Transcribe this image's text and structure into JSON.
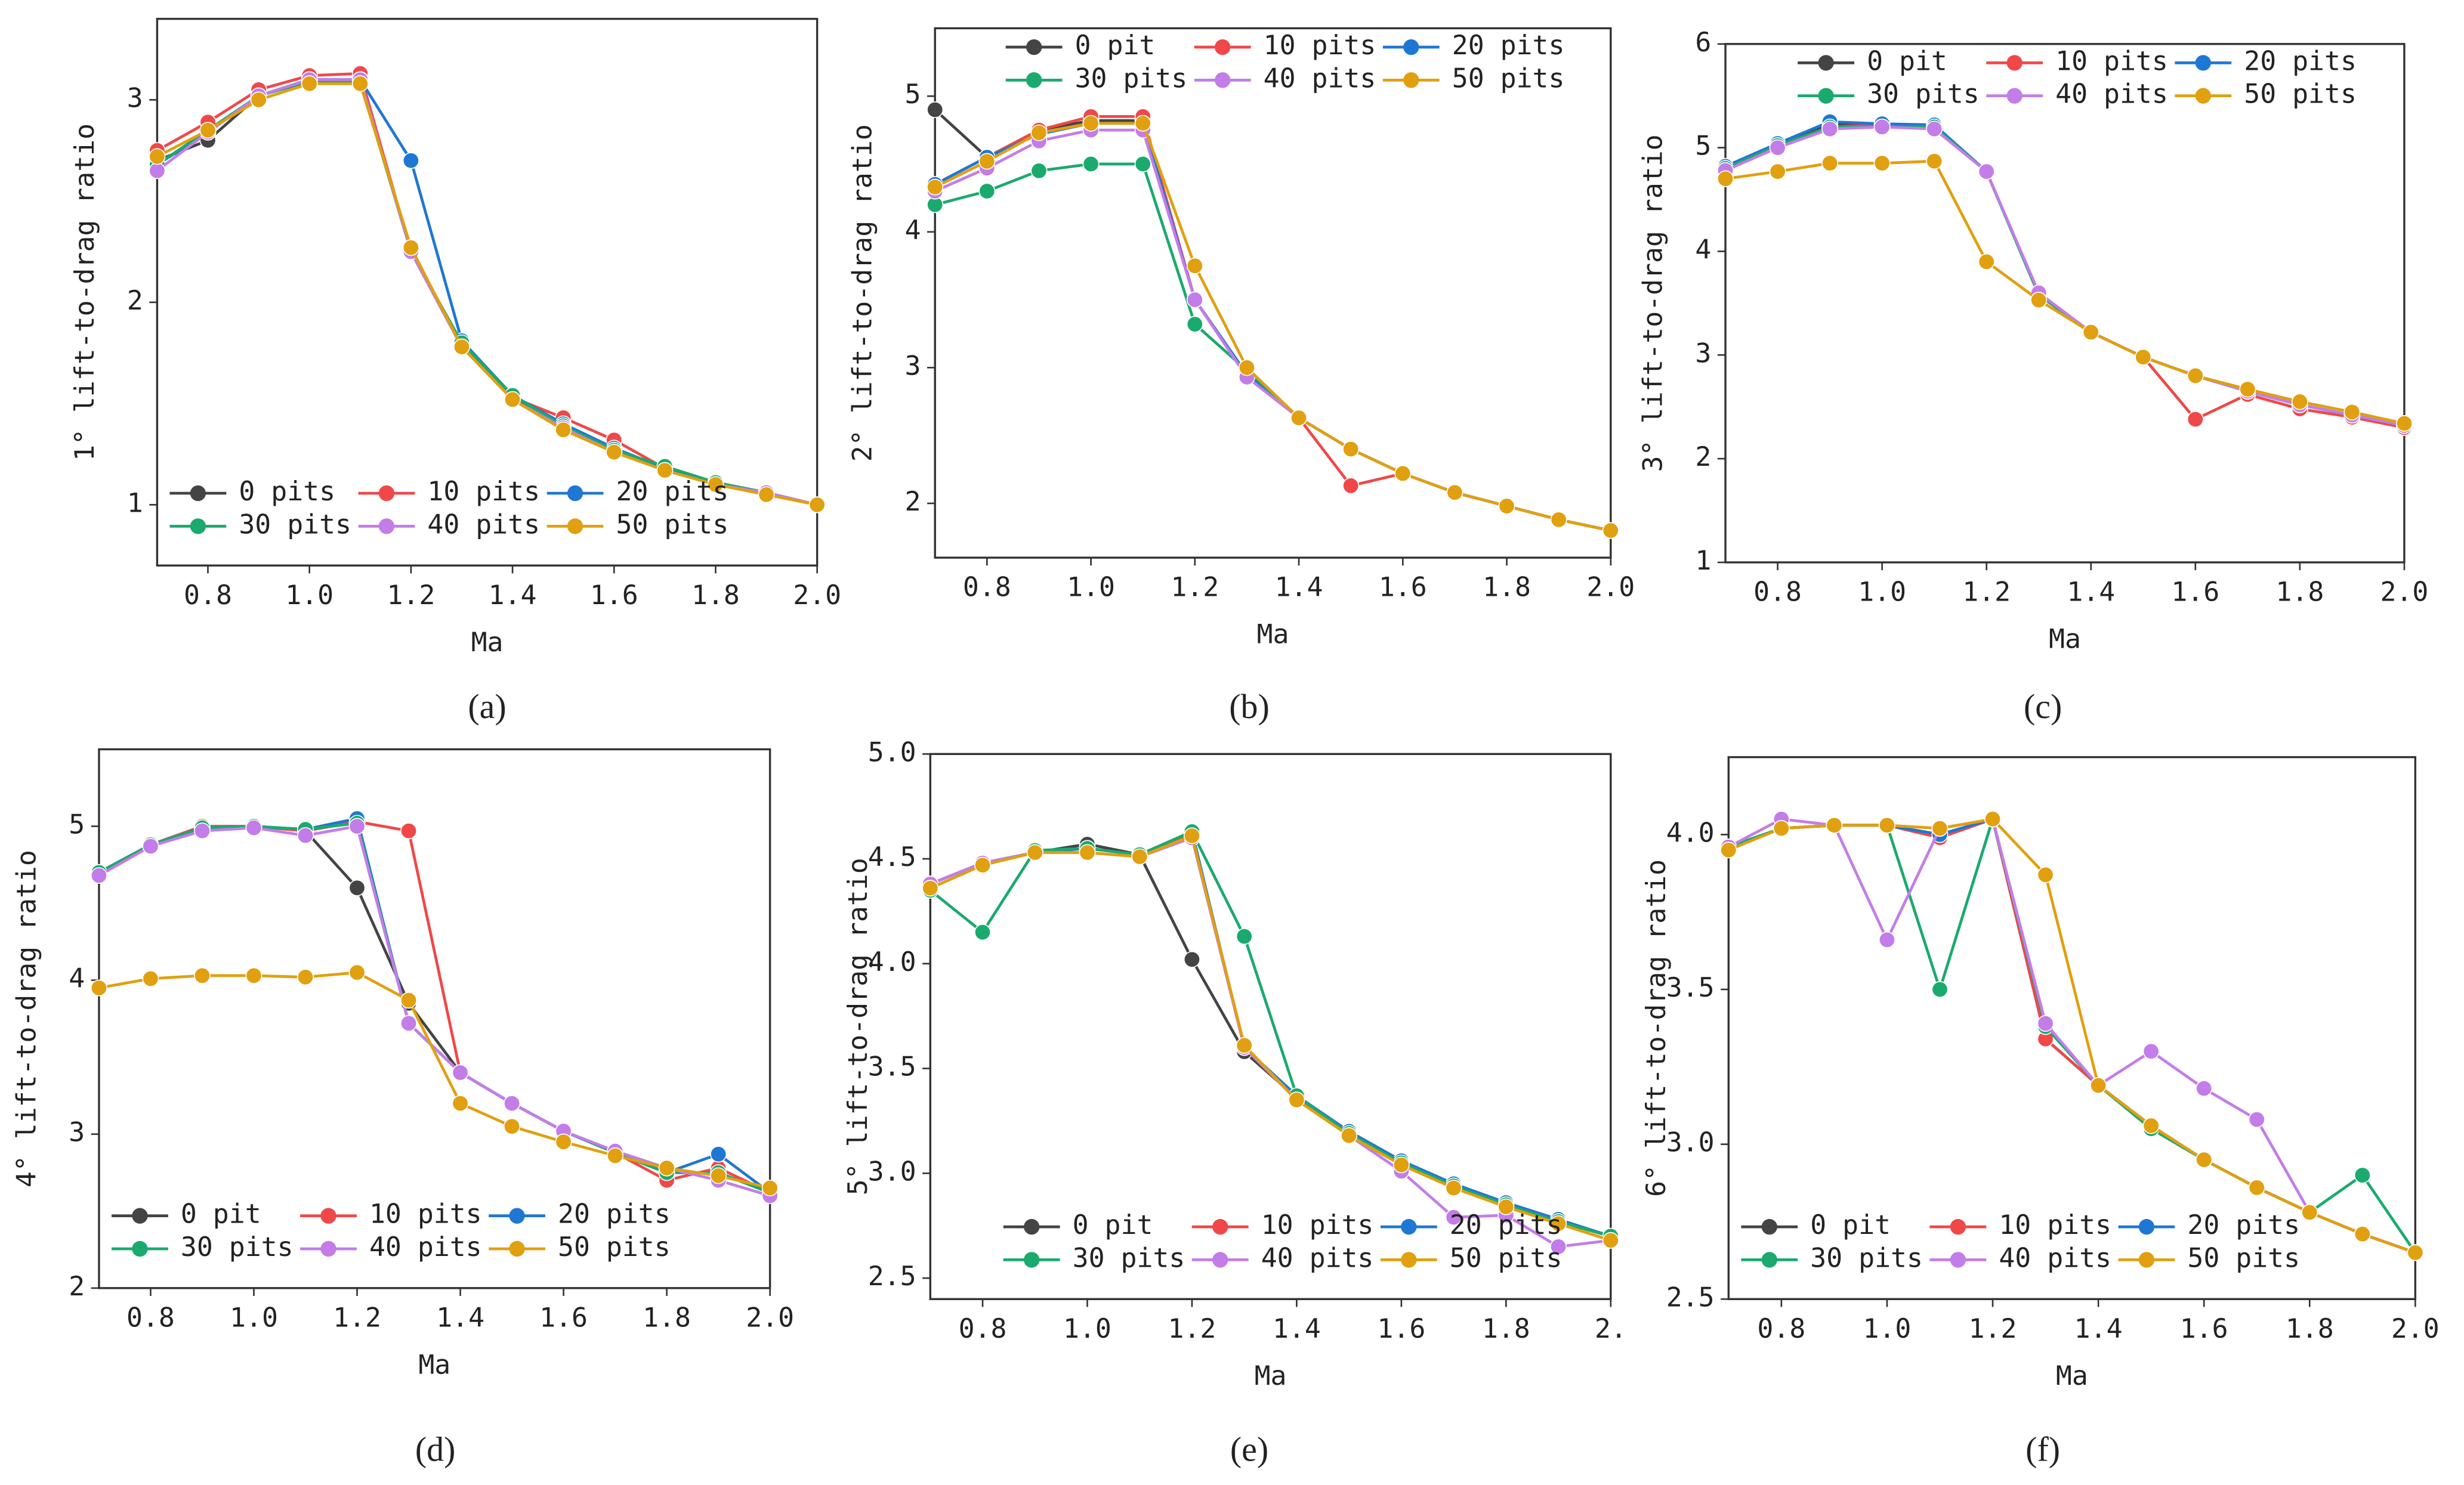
{
  "chart_data": [
    {
      "type": "line",
      "panel_label": "(a)",
      "xlabel": "Ma",
      "ylabel": "1° lift-to-drag ratio",
      "legend": "lower left",
      "x": [
        0.7,
        0.8,
        0.9,
        1.0,
        1.1,
        1.2,
        1.3,
        1.4,
        1.5,
        1.6,
        1.7,
        1.8,
        1.9,
        2.0
      ],
      "xlim": [
        0.7,
        2.0
      ],
      "xticks": [
        0.8,
        {
          "value": 1,
          "label": "1.0"
        },
        1.2,
        1.4,
        1.6,
        1.8,
        {
          "value": 2,
          "label": "2.0"
        }
      ],
      "ylim": [
        0.7,
        3.4
      ],
      "yticks": [
        1,
        2,
        3
      ],
      "series": [
        {
          "name": "0 pits",
          "color": "#444444",
          "values": [
            2.7,
            2.8,
            3.02,
            3.1,
            3.1,
            2.25,
            1.78,
            1.53,
            1.38,
            1.27,
            1.18,
            1.11,
            1.06,
            1.0
          ]
        },
        {
          "name": "10 pits",
          "color": "#f04848",
          "values": [
            2.75,
            2.89,
            3.05,
            3.12,
            3.13,
            2.25,
            1.78,
            1.53,
            1.43,
            1.32,
            1.18,
            1.11,
            1.06,
            1.0
          ]
        },
        {
          "name": "20 pits",
          "color": "#1f77d4",
          "values": [
            2.68,
            2.84,
            3.02,
            3.1,
            3.1,
            2.7,
            1.81,
            1.54,
            1.4,
            1.28,
            1.18,
            1.11,
            1.06,
            1.0
          ]
        },
        {
          "name": "30 pits",
          "color": "#1aaa6e",
          "values": [
            2.68,
            2.85,
            3.02,
            3.09,
            3.09,
            2.25,
            1.8,
            1.54,
            1.39,
            1.27,
            1.19,
            1.11,
            1.06,
            1.0
          ]
        },
        {
          "name": "40 pits",
          "color": "#c37de8",
          "values": [
            2.65,
            2.84,
            3.02,
            3.1,
            3.1,
            2.25,
            1.78,
            1.52,
            1.38,
            1.26,
            1.17,
            1.1,
            1.06,
            1.0
          ]
        },
        {
          "name": "50 pits",
          "color": "#e0a010",
          "values": [
            2.72,
            2.85,
            3.0,
            3.08,
            3.08,
            2.27,
            1.78,
            1.52,
            1.37,
            1.26,
            1.17,
            1.1,
            1.05,
            1.0
          ]
        }
      ]
    },
    {
      "type": "line",
      "panel_label": "(b)",
      "xlabel": "Ma",
      "ylabel": "2° lift-to-drag ratio",
      "legend": "upper center",
      "x": [
        0.7,
        0.8,
        0.9,
        1.0,
        1.1,
        1.2,
        1.3,
        1.4,
        1.5,
        1.6,
        1.7,
        1.8,
        1.9,
        2.0
      ],
      "xlim": [
        0.7,
        2.0
      ],
      "xticks": [
        0.8,
        {
          "value": 1,
          "label": "1.0"
        },
        1.2,
        1.4,
        1.6,
        1.8,
        {
          "value": 2,
          "label": "2.0"
        }
      ],
      "ylim": [
        1.6,
        5.5
      ],
      "yticks": [
        2,
        3,
        4,
        5
      ],
      "series": [
        {
          "name": "0 pit",
          "color": "#444444",
          "values": [
            4.9,
            4.55,
            4.75,
            4.82,
            4.82,
            3.5,
            2.95,
            2.63,
            2.4,
            2.22,
            2.08,
            1.98,
            1.88,
            1.8
          ]
        },
        {
          "name": "10 pits",
          "color": "#f04848",
          "values": [
            4.35,
            4.55,
            4.75,
            4.85,
            4.85,
            3.5,
            2.95,
            2.63,
            2.13,
            2.22,
            2.08,
            1.98,
            1.88,
            1.8
          ]
        },
        {
          "name": "20 pits",
          "color": "#1f77d4",
          "values": [
            4.35,
            4.55,
            4.72,
            4.8,
            4.8,
            3.5,
            2.95,
            2.63,
            2.4,
            2.22,
            2.08,
            1.98,
            1.88,
            1.8
          ]
        },
        {
          "name": "30 pits",
          "color": "#1aaa6e",
          "values": [
            4.2,
            4.3,
            4.45,
            4.5,
            4.5,
            3.32,
            2.98,
            2.63,
            2.4,
            2.22,
            2.08,
            1.98,
            1.88,
            1.8
          ]
        },
        {
          "name": "40 pits",
          "color": "#c37de8",
          "values": [
            4.3,
            4.47,
            4.67,
            4.75,
            4.75,
            3.5,
            2.93,
            2.63,
            2.4,
            2.22,
            2.08,
            1.98,
            1.88,
            1.8
          ]
        },
        {
          "name": "50 pits",
          "color": "#e0a010",
          "values": [
            4.33,
            4.52,
            4.73,
            4.8,
            4.8,
            3.75,
            3.0,
            2.63,
            2.4,
            2.22,
            2.08,
            1.98,
            1.88,
            1.8
          ]
        }
      ]
    },
    {
      "type": "line",
      "panel_label": "(c)",
      "xlabel": "Ma",
      "ylabel": "3° lift-to-drag ratio",
      "legend": "upper center",
      "x": [
        0.7,
        0.8,
        0.9,
        1.0,
        1.1,
        1.2,
        1.3,
        1.4,
        1.5,
        1.6,
        1.7,
        1.8,
        1.9,
        2.0
      ],
      "xlim": [
        0.7,
        2.0
      ],
      "xticks": [
        0.8,
        {
          "value": 1,
          "label": "1.0"
        },
        1.2,
        1.4,
        1.6,
        1.8,
        {
          "value": 2,
          "label": "2.0"
        }
      ],
      "ylim": [
        1,
        6
      ],
      "yticks": [
        1,
        2,
        3,
        4,
        5,
        6
      ],
      "series": [
        {
          "name": "0 pit",
          "color": "#444444",
          "values": [
            4.8,
            5.02,
            5.22,
            5.22,
            5.2,
            4.77,
            3.58,
            3.22,
            2.98,
            2.8,
            2.65,
            2.52,
            2.42,
            2.32
          ]
        },
        {
          "name": "10 pits",
          "color": "#f04848",
          "values": [
            4.8,
            5.02,
            5.2,
            5.22,
            5.2,
            4.77,
            3.58,
            3.22,
            2.98,
            2.38,
            2.62,
            2.48,
            2.4,
            2.3
          ]
        },
        {
          "name": "20 pits",
          "color": "#1f77d4",
          "values": [
            4.82,
            5.04,
            5.25,
            5.23,
            5.22,
            4.77,
            3.58,
            3.22,
            2.98,
            2.8,
            2.65,
            2.52,
            2.42,
            2.32
          ]
        },
        {
          "name": "30 pits",
          "color": "#1aaa6e",
          "values": [
            4.8,
            5.02,
            5.2,
            5.2,
            5.2,
            4.77,
            3.58,
            3.22,
            2.98,
            2.8,
            2.65,
            2.52,
            2.42,
            2.32
          ]
        },
        {
          "name": "40 pits",
          "color": "#c37de8",
          "values": [
            4.78,
            5.0,
            5.18,
            5.2,
            5.18,
            4.77,
            3.6,
            3.22,
            2.98,
            2.8,
            2.65,
            2.52,
            2.42,
            2.32
          ]
        },
        {
          "name": "50 pits",
          "color": "#e0a010",
          "values": [
            4.7,
            4.77,
            4.85,
            4.85,
            4.87,
            3.9,
            3.53,
            3.22,
            2.98,
            2.8,
            2.67,
            2.55,
            2.45,
            2.34
          ]
        }
      ]
    },
    {
      "type": "line",
      "panel_label": "(d)",
      "xlabel": "Ma",
      "ylabel": "4° lift-to-drag ratio",
      "legend": "lower left",
      "x": [
        0.7,
        0.8,
        0.9,
        1.0,
        1.1,
        1.2,
        1.3,
        1.4,
        1.5,
        1.6,
        1.7,
        1.8,
        1.9,
        2.0
      ],
      "xlim": [
        0.7,
        2.0
      ],
      "xticks": [
        0.8,
        {
          "value": 1,
          "label": "1.0"
        },
        1.2,
        1.4,
        1.6,
        1.8,
        {
          "value": 2,
          "label": "2.0"
        }
      ],
      "ylim": [
        2,
        5.5
      ],
      "yticks": [
        2,
        3,
        4,
        5
      ],
      "series": [
        {
          "name": "0 pit",
          "color": "#444444",
          "values": [
            4.7,
            4.88,
            4.99,
            5.0,
            4.97,
            4.6,
            3.85,
            3.4,
            3.2,
            3.02,
            2.88,
            2.75,
            2.75,
            2.62
          ]
        },
        {
          "name": "10 pits",
          "color": "#f04848",
          "values": [
            4.7,
            4.88,
            5.0,
            5.0,
            4.97,
            5.03,
            4.97,
            3.4,
            3.2,
            3.02,
            2.88,
            2.7,
            2.78,
            2.62
          ]
        },
        {
          "name": "20 pits",
          "color": "#1f77d4",
          "values": [
            4.7,
            4.88,
            4.99,
            5.0,
            4.98,
            5.05,
            3.72,
            3.4,
            3.2,
            3.02,
            2.88,
            2.75,
            2.87,
            2.62
          ]
        },
        {
          "name": "30 pits",
          "color": "#1aaa6e",
          "values": [
            4.7,
            4.88,
            4.99,
            5.0,
            4.98,
            5.02,
            3.72,
            3.4,
            3.2,
            3.02,
            2.88,
            2.75,
            2.75,
            2.62
          ]
        },
        {
          "name": "40 pits",
          "color": "#c37de8",
          "values": [
            4.68,
            4.87,
            4.97,
            4.99,
            4.94,
            5.0,
            3.72,
            3.4,
            3.2,
            3.02,
            2.89,
            2.78,
            2.7,
            2.6
          ]
        },
        {
          "name": "50 pits",
          "color": "#e0a010",
          "values": [
            3.95,
            4.01,
            4.03,
            4.03,
            4.02,
            4.05,
            3.87,
            3.2,
            3.05,
            2.95,
            2.86,
            2.78,
            2.73,
            2.65
          ]
        }
      ]
    },
    {
      "type": "line",
      "panel_label": "(e)",
      "xlabel": "Ma",
      "ylabel": "5° lift-to-drag ratio",
      "legend": "lower center",
      "x": [
        0.7,
        0.8,
        0.9,
        1.0,
        1.1,
        1.2,
        1.3,
        1.4,
        1.5,
        1.6,
        1.7,
        1.8,
        1.9,
        2.0
      ],
      "xlim": [
        0.7,
        2.0
      ],
      "xticks": [
        0.8,
        {
          "value": 1,
          "label": "1.0"
        },
        1.2,
        1.4,
        1.6,
        1.8,
        {
          "value": 2,
          "label": "2."
        }
      ],
      "ylim": [
        2.4,
        5.0
      ],
      "yticks": [
        2.5,
        {
          "value": 3,
          "label": "3.0"
        },
        3.5,
        {
          "value": 4,
          "label": "4.0"
        },
        4.5,
        {
          "value": 5,
          "label": "5.0"
        }
      ],
      "series": [
        {
          "name": "0 pit",
          "color": "#444444",
          "values": [
            4.38,
            4.48,
            4.53,
            4.57,
            4.52,
            4.02,
            3.58,
            3.36,
            3.19,
            3.05,
            2.94,
            2.85,
            2.77,
            2.7
          ]
        },
        {
          "name": "10 pits",
          "color": "#f04848",
          "values": [
            4.38,
            4.48,
            4.53,
            4.55,
            4.52,
            4.62,
            3.6,
            3.36,
            3.19,
            3.05,
            2.94,
            2.85,
            2.77,
            2.7
          ]
        },
        {
          "name": "20 pits",
          "color": "#1f77d4",
          "values": [
            4.38,
            4.48,
            4.53,
            4.55,
            4.52,
            4.63,
            3.6,
            3.37,
            3.2,
            3.06,
            2.95,
            2.86,
            2.78,
            2.7
          ]
        },
        {
          "name": "30 pits",
          "color": "#1aaa6e",
          "values": [
            4.35,
            4.15,
            4.54,
            4.55,
            4.52,
            4.63,
            4.13,
            3.37,
            3.19,
            3.05,
            2.94,
            2.85,
            2.77,
            2.7
          ]
        },
        {
          "name": "40 pits",
          "color": "#c37de8",
          "values": [
            4.38,
            4.48,
            4.53,
            4.53,
            4.51,
            4.6,
            3.6,
            3.35,
            3.18,
            3.01,
            2.79,
            2.8,
            2.65,
            2.68
          ]
        },
        {
          "name": "50 pits",
          "color": "#e0a010",
          "values": [
            4.36,
            4.47,
            4.53,
            4.53,
            4.51,
            4.61,
            3.61,
            3.35,
            3.18,
            3.04,
            2.93,
            2.84,
            2.76,
            2.68
          ]
        }
      ]
    },
    {
      "type": "line",
      "panel_label": "(f)",
      "xlabel": "Ma",
      "ylabel": "6° lift-to-drag ratio",
      "legend": "lower left",
      "x": [
        0.7,
        0.8,
        0.9,
        1.0,
        1.1,
        1.2,
        1.3,
        1.4,
        1.5,
        1.6,
        1.7,
        1.8,
        1.9,
        2.0
      ],
      "xlim": [
        0.7,
        2.0
      ],
      "xticks": [
        0.8,
        {
          "value": 1,
          "label": "1.0"
        },
        1.2,
        1.4,
        1.6,
        1.8,
        {
          "value": 2,
          "label": "2.0"
        }
      ],
      "ylim": [
        2.5,
        4.25
      ],
      "yticks": [
        2.5,
        {
          "value": 3,
          "label": "3.0"
        },
        3.5,
        {
          "value": 4,
          "label": "4.0"
        }
      ],
      "series": [
        {
          "name": "0 pit",
          "color": "#444444",
          "values": [
            3.96,
            4.02,
            4.03,
            4.03,
            4.0,
            4.05,
            3.34,
            3.19,
            3.06,
            2.95,
            2.86,
            2.78,
            2.71,
            2.65
          ]
        },
        {
          "name": "10 pits",
          "color": "#f04848",
          "values": [
            3.96,
            4.02,
            4.03,
            4.03,
            3.99,
            4.05,
            3.34,
            3.19,
            3.06,
            2.95,
            2.86,
            2.78,
            2.71,
            2.65
          ]
        },
        {
          "name": "20 pits",
          "color": "#1f77d4",
          "values": [
            3.96,
            4.02,
            4.03,
            4.03,
            4.0,
            4.05,
            3.38,
            3.19,
            3.06,
            2.95,
            2.86,
            2.78,
            2.71,
            2.65
          ]
        },
        {
          "name": "30 pits",
          "color": "#1aaa6e",
          "values": [
            3.96,
            4.02,
            4.03,
            4.03,
            3.5,
            4.05,
            3.38,
            3.19,
            3.05,
            2.95,
            2.86,
            2.78,
            2.9,
            2.65
          ]
        },
        {
          "name": "40 pits",
          "color": "#c37de8",
          "values": [
            3.96,
            4.05,
            4.03,
            3.66,
            4.02,
            4.05,
            3.39,
            3.19,
            3.3,
            3.18,
            3.08,
            2.78,
            2.71,
            2.65
          ]
        },
        {
          "name": "50 pits",
          "color": "#e0a010",
          "values": [
            3.95,
            4.02,
            4.03,
            4.03,
            4.02,
            4.05,
            3.87,
            3.19,
            3.06,
            2.95,
            2.86,
            2.78,
            2.71,
            2.65
          ]
        }
      ]
    }
  ]
}
